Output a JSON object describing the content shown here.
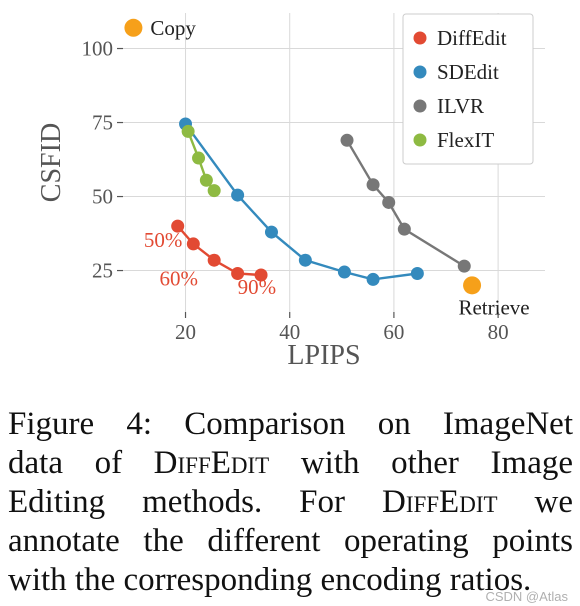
{
  "chart_data": {
    "type": "scatter",
    "title": "",
    "xlabel": "LPIPS",
    "ylabel": "CSFID",
    "xlim": [
      8,
      89
    ],
    "ylim": [
      11,
      112
    ],
    "xticks": [
      20,
      40,
      60,
      80
    ],
    "yticks": [
      25,
      50,
      75,
      100
    ],
    "grid": true,
    "legend": "top-right",
    "series": [
      {
        "name": "DiffEdit",
        "color": "#e24a33",
        "connected": true,
        "points": [
          [
            18.5,
            40
          ],
          [
            21.5,
            34
          ],
          [
            25.5,
            28.5
          ],
          [
            30,
            24
          ],
          [
            34.5,
            23.5
          ]
        ]
      },
      {
        "name": "SDEdit",
        "color": "#348abd",
        "connected": true,
        "points": [
          [
            20,
            74.5
          ],
          [
            30,
            50.5
          ],
          [
            36.5,
            38
          ],
          [
            43,
            28.5
          ],
          [
            50.5,
            24.5
          ],
          [
            56,
            22
          ],
          [
            64.5,
            24
          ]
        ]
      },
      {
        "name": "ILVR",
        "color": "#777777",
        "connected": true,
        "points": [
          [
            51,
            69
          ],
          [
            56,
            54
          ],
          [
            59,
            48
          ],
          [
            62,
            39
          ],
          [
            73.5,
            26.5
          ]
        ]
      },
      {
        "name": "FlexIT",
        "color": "#8eba42",
        "connected": true,
        "points": [
          [
            20.5,
            72
          ],
          [
            22.5,
            63
          ],
          [
            24,
            55.5
          ],
          [
            25.5,
            52
          ]
        ]
      }
    ],
    "reference_points": [
      {
        "label": "Copy",
        "x": 10,
        "y": 107,
        "color": "#f6a01a"
      },
      {
        "label": "Retrieve",
        "x": 75,
        "y": 20,
        "color": "#f6a01a"
      }
    ],
    "annotations": [
      {
        "text": "50%",
        "x": 12,
        "y": 33,
        "color": "#e24a33"
      },
      {
        "text": "60%",
        "x": 15,
        "y": 20,
        "color": "#e24a33"
      },
      {
        "text": "90%",
        "x": 30,
        "y": 17,
        "color": "#e24a33"
      }
    ]
  },
  "caption": {
    "lines": [
      [
        {
          "t": "Figure 4:  Comparison on ImageNet"
        }
      ],
      [
        {
          "t": "data of "
        },
        {
          "t": "DiffEdit",
          "sc": true
        },
        {
          "t": " with other Image"
        }
      ],
      [
        {
          "t": "Editing methods.  For "
        },
        {
          "t": "DiffEdit",
          "sc": true
        },
        {
          "t": " we"
        }
      ],
      [
        {
          "t": "annotate the different operating points"
        }
      ],
      [
        {
          "t": "with the corresponding encoding ratios."
        }
      ]
    ]
  },
  "watermark": "CSDN @Atlas"
}
